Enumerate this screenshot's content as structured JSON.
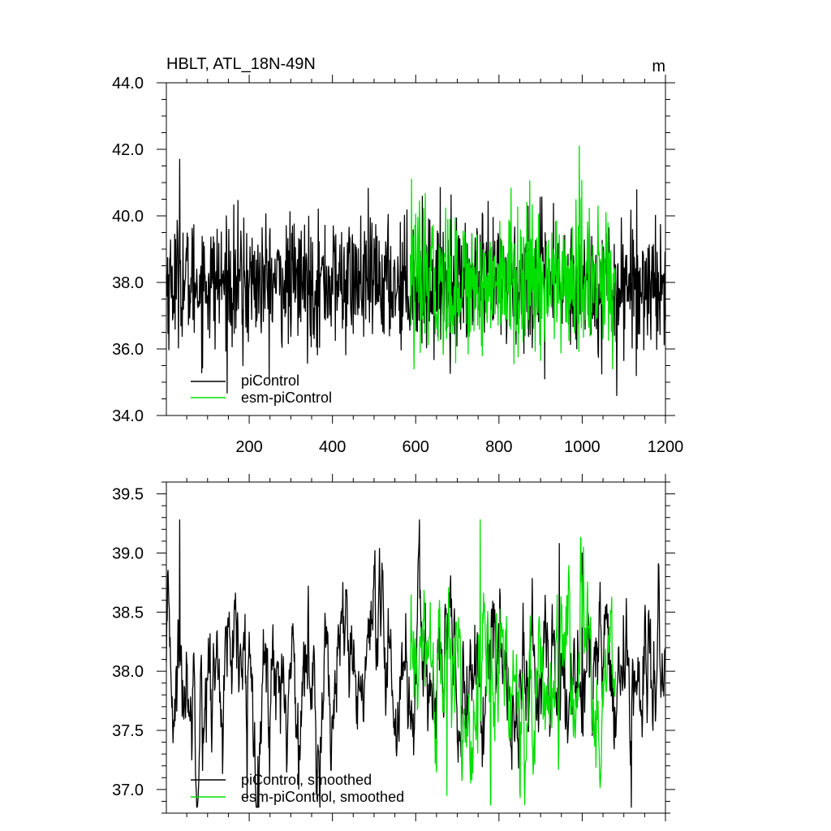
{
  "figure": {
    "title": "HBLT, ATL_18N-49N",
    "units": "m"
  },
  "chart_data": [
    {
      "type": "line",
      "xlim": [
        1,
        1200
      ],
      "ylim": [
        34.0,
        44.0
      ],
      "x_ticks": [
        200,
        400,
        600,
        800,
        1000,
        1200
      ],
      "x_tick_labels": [
        "200",
        "400",
        "600",
        "800",
        "1000",
        "1200"
      ],
      "y_ticks": [
        34.0,
        36.0,
        38.0,
        40.0,
        42.0,
        44.0
      ],
      "y_tick_labels": [
        "34.0",
        "36.0",
        "38.0",
        "40.0",
        "42.0",
        "44.0"
      ],
      "y_minor_step": 0.5,
      "grid": false,
      "legend_position": "bottom-left",
      "series": [
        {
          "name": "piControl",
          "color": "#000000",
          "x_range": [
            1,
            1200
          ],
          "mean": 38.0,
          "std": 0.95,
          "min": 34.6,
          "max": 41.7,
          "notable_points": [
            {
              "x": 33,
              "y": 41.7
            },
            {
              "x": 185,
              "y": 35.5
            },
            {
              "x": 1083,
              "y": 34.6
            },
            {
              "x": 910,
              "y": 35.1
            },
            {
              "x": 1130,
              "y": 35.2
            }
          ]
        },
        {
          "name": "esm-piControl",
          "color": "#00e000",
          "x_range": [
            587,
            1080
          ],
          "mean": 38.0,
          "std": 1.05,
          "min": 35.4,
          "max": 42.1,
          "notable_points": [
            {
              "x": 993,
              "y": 42.1
            },
            {
              "x": 596,
              "y": 35.4
            },
            {
              "x": 590,
              "y": 41.1
            }
          ]
        }
      ]
    },
    {
      "type": "line",
      "xlim": [
        1,
        1200
      ],
      "ylim": [
        36.8,
        39.6
      ],
      "x_ticks": [
        200,
        400,
        600,
        800,
        1000,
        1200
      ],
      "y_ticks": [
        37.0,
        37.5,
        38.0,
        38.5,
        39.0,
        39.5
      ],
      "y_tick_labels": [
        "37.0",
        "37.5",
        "38.0",
        "38.5",
        "39.0",
        "39.5"
      ],
      "y_minor_step": 0.1,
      "grid": false,
      "legend_position": "bottom-left",
      "series": [
        {
          "name": "piControl, smoothed",
          "color": "#000000",
          "x_range": [
            1,
            1200
          ],
          "mean": 37.95,
          "std": 0.38,
          "min": 36.85,
          "max": 39.28,
          "notable_points": [
            {
              "x": 33,
              "y": 39.28
            },
            {
              "x": 195,
              "y": 36.92
            },
            {
              "x": 780,
              "y": 36.87
            },
            {
              "x": 945,
              "y": 39.08
            },
            {
              "x": 1000,
              "y": 39.0
            }
          ]
        },
        {
          "name": "esm-piControl, smoothed",
          "color": "#00e000",
          "x_range": [
            587,
            1080
          ],
          "mean": 37.95,
          "std": 0.4,
          "min": 36.87,
          "max": 39.28,
          "notable_points": [
            {
              "x": 755,
              "y": 39.28
            },
            {
              "x": 675,
              "y": 36.95
            },
            {
              "x": 780,
              "y": 36.87
            },
            {
              "x": 1003,
              "y": 39.05
            },
            {
              "x": 1045,
              "y": 37.15
            }
          ]
        }
      ]
    }
  ]
}
